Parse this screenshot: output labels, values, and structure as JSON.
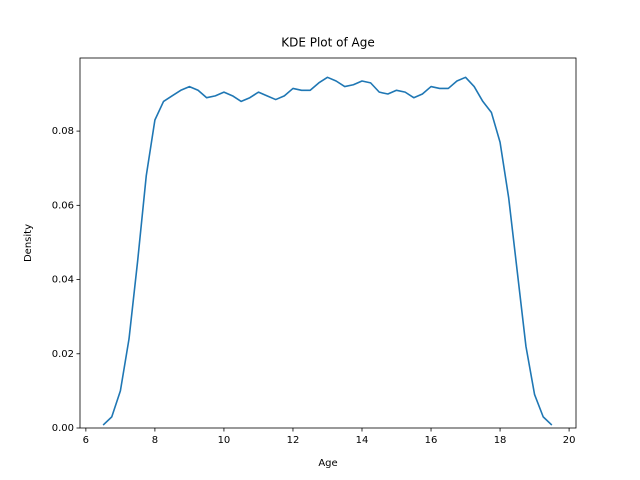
{
  "chart_data": {
    "type": "line",
    "title": "KDE Plot of Age",
    "xlabel": "Age",
    "ylabel": "Density",
    "x": [
      6.5,
      6.75,
      7.0,
      7.25,
      7.5,
      7.75,
      8.0,
      8.25,
      8.5,
      8.75,
      9.0,
      9.25,
      9.5,
      9.75,
      10.0,
      10.25,
      10.5,
      10.75,
      11.0,
      11.25,
      11.5,
      11.75,
      12.0,
      12.25,
      12.5,
      12.75,
      13.0,
      13.25,
      13.5,
      13.75,
      14.0,
      14.25,
      14.5,
      14.75,
      15.0,
      15.25,
      15.5,
      15.75,
      16.0,
      16.25,
      16.5,
      16.75,
      17.0,
      17.25,
      17.5,
      17.75,
      18.0,
      18.25,
      18.5,
      18.75,
      19.0,
      19.25,
      19.5
    ],
    "values": [
      0.0008,
      0.003,
      0.01,
      0.024,
      0.045,
      0.068,
      0.083,
      0.088,
      0.0895,
      0.091,
      0.092,
      0.091,
      0.089,
      0.0895,
      0.0905,
      0.0895,
      0.088,
      0.089,
      0.0905,
      0.0895,
      0.0885,
      0.0895,
      0.0915,
      0.091,
      0.091,
      0.093,
      0.0945,
      0.0935,
      0.092,
      0.0925,
      0.0935,
      0.093,
      0.0905,
      0.09,
      0.091,
      0.0905,
      0.089,
      0.09,
      0.092,
      0.0915,
      0.0915,
      0.0935,
      0.0945,
      0.092,
      0.088,
      0.085,
      0.077,
      0.062,
      0.042,
      0.022,
      0.009,
      0.003,
      0.0008
    ],
    "color": "#1f77b4",
    "xlim": [
      5.83,
      20.2
    ],
    "xticks": [
      6,
      8,
      10,
      12,
      14,
      16,
      18,
      20
    ],
    "ylim": [
      0,
      0.0997
    ],
    "yticks": [
      {
        "value": 0,
        "label": "0.00"
      },
      {
        "value": 0.02,
        "label": "0.02"
      },
      {
        "value": 0.04,
        "label": "0.04"
      },
      {
        "value": 0.06,
        "label": "0.06"
      },
      {
        "value": 0.08,
        "label": "0.08"
      }
    ],
    "grid": false
  }
}
